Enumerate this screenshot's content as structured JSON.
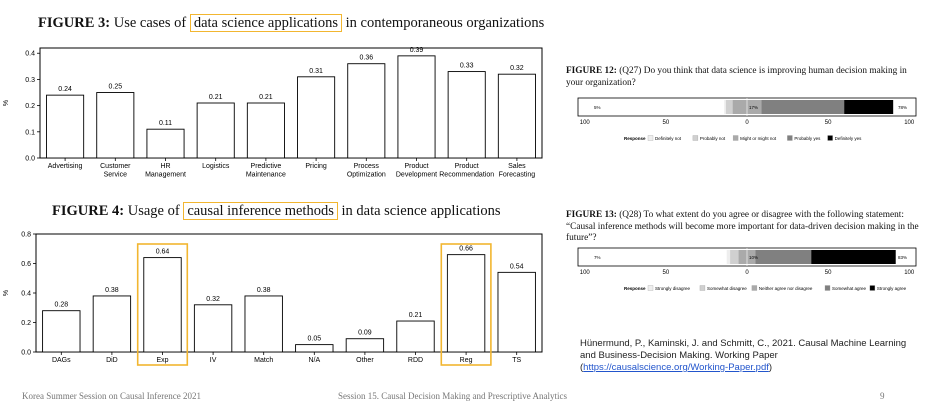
{
  "figure3": {
    "label": "FIGURE 3:",
    "pre": "Use cases of",
    "highlight": "data science applications",
    "post": "in contemporaneous organizations"
  },
  "figure4": {
    "label": "FIGURE 4:",
    "pre": "Usage of",
    "highlight": "causal inference methods",
    "post": "in data science applications"
  },
  "figure12": {
    "label": "FIGURE 12:",
    "text": "(Q27) Do you think that data science is improving human decision making in your organization?"
  },
  "figure13": {
    "label": "FIGURE 13:",
    "text": "(Q28) To what extent do you agree or disagree with the following statement: “Causal inference methods will become more important for data-driven decision making in the future”?"
  },
  "reference": {
    "text": "Hünermund, P., Kaminski, J. and Schmitt, C., 2021. Causal Machine Learning and Business-Decision Making. Working Paper (",
    "link": "https://causalscience.org/Working-Paper.pdf",
    "close": ")"
  },
  "footer": {
    "left": "Korea Summer Session on Causal Inference 2021",
    "center": "Session 15. Causal Decision Making and Prescriptive Analytics",
    "page": "9"
  },
  "colors": {
    "highlight": "#f2b630",
    "bar_fill": "#ffffff",
    "bar_stroke": "#000000"
  },
  "chart_data": [
    {
      "type": "bar",
      "id": "figure3",
      "categories": [
        "Advertising",
        "Customer Service",
        "HR Management",
        "Logistics",
        "Predictive Maintenance",
        "Pricing",
        "Process Optimization",
        "Product Development",
        "Product Recommendation",
        "Sales Forecasting"
      ],
      "category_lines": [
        [
          "Advertising"
        ],
        [
          "Customer",
          "Service"
        ],
        [
          "HR",
          "Management"
        ],
        [
          "Logistics"
        ],
        [
          "Predictive",
          "Maintenance"
        ],
        [
          "Pricing"
        ],
        [
          "Process",
          "Optimization"
        ],
        [
          "Product",
          "Development"
        ],
        [
          "Product",
          "Recommendation"
        ],
        [
          "Sales",
          "Forecasting"
        ]
      ],
      "values": [
        0.24,
        0.25,
        0.11,
        0.21,
        0.21,
        0.31,
        0.36,
        0.39,
        0.33,
        0.32
      ],
      "value_labels": [
        "0.24",
        "0.25",
        "0.11",
        "0.21",
        "0.21",
        "0.31",
        "0.36",
        "0.39",
        "0.33",
        "0.32"
      ],
      "ylabel": "%",
      "ylim": [
        0,
        0.42
      ],
      "yticks": [
        "0.0",
        "0.1",
        "0.2",
        "0.3",
        "0.4"
      ],
      "ytick_values": [
        0,
        0.1,
        0.2,
        0.3,
        0.4
      ],
      "highlighted": []
    },
    {
      "type": "bar",
      "id": "figure4",
      "categories": [
        "DAGs",
        "DiD",
        "Exp",
        "IV",
        "Match",
        "N/A",
        "Other",
        "RDD",
        "Reg",
        "TS"
      ],
      "category_lines": [
        [
          "DAGs"
        ],
        [
          "DiD"
        ],
        [
          "Exp"
        ],
        [
          "IV"
        ],
        [
          "Match"
        ],
        [
          "N/A"
        ],
        [
          "Other"
        ],
        [
          "RDD"
        ],
        [
          "Reg"
        ],
        [
          "TS"
        ]
      ],
      "values": [
        0.28,
        0.38,
        0.64,
        0.32,
        0.38,
        0.05,
        0.09,
        0.21,
        0.66,
        0.54
      ],
      "value_labels": [
        "0.28",
        "0.38",
        "0.64",
        "0.32",
        "0.38",
        "0.05",
        "0.09",
        "0.21",
        "0.66",
        "0.54"
      ],
      "ylabel": "%",
      "ylim": [
        0,
        0.8
      ],
      "yticks": [
        "0.0",
        "0.2",
        "0.4",
        "0.6",
        "0.8"
      ],
      "ytick_values": [
        0,
        0.2,
        0.4,
        0.6,
        0.8
      ],
      "highlighted": [
        "Exp",
        "Reg"
      ]
    },
    {
      "type": "bar",
      "id": "figure12",
      "orientation": "horizontal-diverging",
      "categories": [
        "Definitely not",
        "Probably not",
        "Might or might not",
        "Probably yes",
        "Definitely yes"
      ],
      "values": [
        1,
        4,
        17,
        49,
        29
      ],
      "colors": [
        "#eeeeee",
        "#d0d0d0",
        "#aaaaaa",
        "#808080",
        "#000000"
      ],
      "left_label": "5%",
      "center_label": "17%",
      "right_label": "78%",
      "xlim": [
        -100,
        100
      ],
      "xticks": [
        "100",
        "50",
        "0",
        "50",
        "100"
      ],
      "xtick_values": [
        -100,
        -50,
        0,
        50,
        100
      ],
      "legend_title": "Response",
      "legend": "bottom"
    },
    {
      "type": "bar",
      "id": "figure13",
      "orientation": "horizontal-diverging",
      "categories": [
        "Strongly disagree",
        "Somewhat disagree",
        "Neither agree nor disagree",
        "Somewhat agree",
        "Strongly agree"
      ],
      "values": [
        2,
        5,
        10,
        33,
        50
      ],
      "colors": [
        "#eeeeee",
        "#d0d0d0",
        "#aaaaaa",
        "#808080",
        "#000000"
      ],
      "left_label": "7%",
      "center_label": "10%",
      "right_label": "83%",
      "xlim": [
        -100,
        100
      ],
      "xticks": [
        "100",
        "50",
        "0",
        "50",
        "100"
      ],
      "xtick_values": [
        -100,
        -50,
        0,
        50,
        100
      ],
      "legend_title": "Response",
      "legend": "bottom"
    }
  ]
}
